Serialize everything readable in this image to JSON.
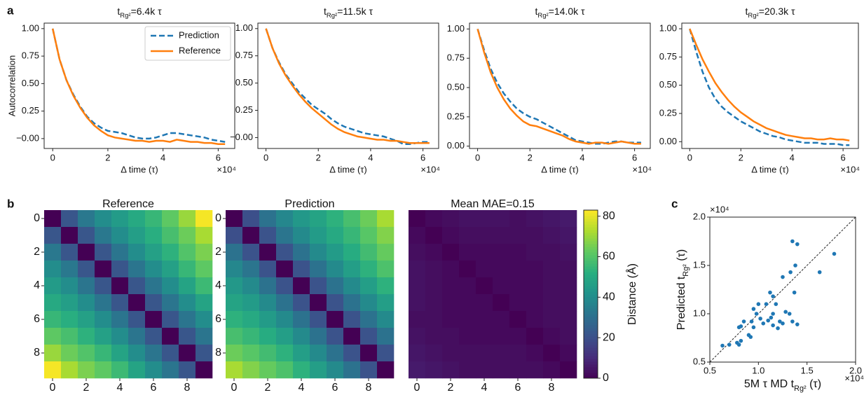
{
  "panel_labels": [
    "a",
    "b",
    "c"
  ],
  "chart_data": [
    {
      "type": "line",
      "title": [
        {
          "text": "t"
        },
        {
          "text": "Rg²",
          "sub": true
        },
        {
          "text": "=6.4k τ"
        }
      ],
      "xlabel": "Δ time (τ)",
      "ylabel": "Autocorrelation",
      "x_offset": "×10⁴",
      "legend": "upper right",
      "x": [
        0,
        0.25,
        0.5,
        0.75,
        1,
        1.25,
        1.5,
        1.75,
        2,
        2.25,
        2.5,
        2.75,
        3,
        3.25,
        3.5,
        3.75,
        4,
        4.25,
        4.5,
        4.75,
        5,
        5.25,
        5.5,
        5.75,
        6,
        6.25
      ],
      "series": [
        {
          "name": "Prediction",
          "color": "#1f77b4",
          "dash": true,
          "values": [
            1,
            0.72,
            0.53,
            0.4,
            0.29,
            0.2,
            0.14,
            0.1,
            0.07,
            0.06,
            0.05,
            0.03,
            0.01,
            0,
            0,
            0.01,
            0.03,
            0.05,
            0.05,
            0.04,
            0.03,
            0.02,
            0.01,
            -0.01,
            -0.02,
            -0.03
          ]
        },
        {
          "name": "Reference",
          "color": "#ff7f0e",
          "values": [
            1,
            0.72,
            0.53,
            0.39,
            0.28,
            0.19,
            0.12,
            0.07,
            0.03,
            0.01,
            0,
            -0.01,
            -0.02,
            -0.02,
            -0.03,
            -0.02,
            -0.02,
            -0.03,
            -0.01,
            -0.02,
            -0.03,
            -0.03,
            -0.04,
            -0.04,
            -0.05,
            -0.05
          ]
        }
      ],
      "xlim": [
        -0.31,
        6.6
      ],
      "ylim": [
        -0.09,
        1.05
      ],
      "xticks": [
        0,
        2,
        4,
        6
      ],
      "yticks": [
        {
          "value": 0,
          "label": "−0.00"
        },
        {
          "value": 0.25,
          "label": "0.25"
        },
        {
          "value": 0.5,
          "label": "0.50"
        },
        {
          "value": 0.75,
          "label": "0.75"
        },
        {
          "value": 1,
          "label": "1.00"
        }
      ]
    },
    {
      "type": "line",
      "title": [
        {
          "text": "t"
        },
        {
          "text": "Rg²",
          "sub": true
        },
        {
          "text": "=11.5k τ"
        }
      ],
      "xlabel": "Δ time (τ)",
      "x_offset": "×10⁴",
      "x": [
        0,
        0.25,
        0.5,
        0.75,
        1,
        1.25,
        1.5,
        1.75,
        2,
        2.25,
        2.5,
        2.75,
        3,
        3.25,
        3.5,
        3.75,
        4,
        4.25,
        4.5,
        4.75,
        5,
        5.25,
        5.5,
        5.75,
        6,
        6.25
      ],
      "series": [
        {
          "color": "#1f77b4",
          "dash": true,
          "values": [
            1,
            0.82,
            0.69,
            0.58,
            0.5,
            0.42,
            0.36,
            0.3,
            0.26,
            0.22,
            0.17,
            0.13,
            0.1,
            0.08,
            0.06,
            0.04,
            0.03,
            0.02,
            0.01,
            -0.01,
            -0.03,
            -0.06,
            -0.06,
            -0.05,
            -0.04,
            -0.04
          ]
        },
        {
          "color": "#ff7f0e",
          "values": [
            1,
            0.82,
            0.68,
            0.57,
            0.48,
            0.4,
            0.33,
            0.27,
            0.22,
            0.17,
            0.12,
            0.08,
            0.05,
            0.03,
            0.01,
            0,
            -0.01,
            -0.02,
            -0.02,
            -0.03,
            -0.03,
            -0.04,
            -0.05,
            -0.05,
            -0.05,
            -0.05
          ]
        }
      ],
      "xlim": [
        -0.31,
        6.6
      ],
      "ylim": [
        -0.1,
        1.05
      ],
      "xticks": [
        0,
        2,
        4,
        6
      ],
      "yticks": [
        {
          "value": 0,
          "label": "−0.00"
        },
        {
          "value": 0.25,
          "label": "0.25"
        },
        {
          "value": 0.5,
          "label": "0.50"
        },
        {
          "value": 0.75,
          "label": "0.75"
        },
        {
          "value": 1,
          "label": "1.00"
        }
      ]
    },
    {
      "type": "line",
      "title": [
        {
          "text": "t"
        },
        {
          "text": "Rg²",
          "sub": true
        },
        {
          "text": "=14.0k τ"
        }
      ],
      "xlabel": "Δ time (τ)",
      "x_offset": "×10⁴",
      "x": [
        0,
        0.25,
        0.5,
        0.75,
        1,
        1.25,
        1.5,
        1.75,
        2,
        2.25,
        2.5,
        2.75,
        3,
        3.25,
        3.5,
        3.75,
        4,
        4.25,
        4.5,
        4.75,
        5,
        5.25,
        5.5,
        5.75,
        6,
        6.25
      ],
      "series": [
        {
          "color": "#1f77b4",
          "dash": true,
          "values": [
            1,
            0.82,
            0.66,
            0.54,
            0.45,
            0.38,
            0.32,
            0.28,
            0.25,
            0.23,
            0.2,
            0.17,
            0.14,
            0.11,
            0.08,
            0.05,
            0.04,
            0.03,
            0.02,
            0.02,
            0.03,
            0.04,
            0.04,
            0.03,
            0.03,
            0.03
          ]
        },
        {
          "color": "#ff7f0e",
          "values": [
            1,
            0.8,
            0.63,
            0.5,
            0.4,
            0.32,
            0.26,
            0.21,
            0.18,
            0.17,
            0.15,
            0.13,
            0.11,
            0.09,
            0.06,
            0.04,
            0.03,
            0.02,
            0.03,
            0.03,
            0.02,
            0.03,
            0.04,
            0.03,
            0.02,
            0.02
          ]
        }
      ],
      "xlim": [
        -0.31,
        6.6
      ],
      "ylim": [
        -0.02,
        1.05
      ],
      "xticks": [
        0,
        2,
        4,
        6
      ],
      "yticks": [
        {
          "value": 0,
          "label": "0.00"
        },
        {
          "value": 0.25,
          "label": "0.25"
        },
        {
          "value": 0.5,
          "label": "0.50"
        },
        {
          "value": 0.75,
          "label": "0.75"
        },
        {
          "value": 1,
          "label": "1.00"
        }
      ]
    },
    {
      "type": "line",
      "title": [
        {
          "text": "t"
        },
        {
          "text": "Rg²",
          "sub": true
        },
        {
          "text": "=20.3k τ"
        }
      ],
      "xlabel": "Δ time (τ)",
      "x_offset": "×10⁴",
      "x": [
        0,
        0.25,
        0.5,
        0.75,
        1,
        1.25,
        1.5,
        1.75,
        2,
        2.25,
        2.5,
        2.75,
        3,
        3.25,
        3.5,
        3.75,
        4,
        4.25,
        4.5,
        4.75,
        5,
        5.25,
        5.5,
        5.75,
        6,
        6.25
      ],
      "series": [
        {
          "color": "#1f77b4",
          "dash": true,
          "values": [
            1,
            0.8,
            0.62,
            0.48,
            0.38,
            0.31,
            0.26,
            0.22,
            0.18,
            0.15,
            0.12,
            0.09,
            0.07,
            0.05,
            0.04,
            0.02,
            0.01,
            0,
            -0.01,
            -0.01,
            -0.01,
            -0.02,
            -0.02,
            -0.02,
            -0.03,
            -0.03
          ]
        },
        {
          "color": "#ff7f0e",
          "values": [
            1,
            0.86,
            0.73,
            0.62,
            0.52,
            0.44,
            0.37,
            0.31,
            0.26,
            0.22,
            0.18,
            0.15,
            0.12,
            0.1,
            0.08,
            0.06,
            0.05,
            0.04,
            0.03,
            0.03,
            0.02,
            0.02,
            0.03,
            0.02,
            0.02,
            0.01
          ]
        }
      ],
      "xlim": [
        -0.31,
        6.6
      ],
      "ylim": [
        -0.06,
        1.05
      ],
      "xticks": [
        0,
        2,
        4,
        6
      ],
      "yticks": [
        {
          "value": 0,
          "label": "0.00"
        },
        {
          "value": 0.25,
          "label": "0.25"
        },
        {
          "value": 0.5,
          "label": "0.50"
        },
        {
          "value": 0.75,
          "label": "0.75"
        },
        {
          "value": 1,
          "label": "1.00"
        }
      ]
    },
    {
      "type": "heatmap",
      "title": "Reference",
      "colormap": "viridis",
      "clim": [
        0,
        83
      ],
      "xticks": [
        0,
        2,
        4,
        6,
        8
      ],
      "yticks": [
        0,
        2,
        4,
        6,
        8
      ],
      "matrix": [
        [
          0,
          22,
          33,
          40,
          45,
          50,
          55,
          62,
          70,
          82
        ],
        [
          22,
          0,
          22,
          33,
          40,
          46,
          52,
          58,
          64,
          72
        ],
        [
          33,
          22,
          0,
          22,
          32,
          40,
          47,
          53,
          60,
          66
        ],
        [
          40,
          33,
          22,
          0,
          22,
          32,
          40,
          47,
          55,
          62
        ],
        [
          45,
          40,
          32,
          22,
          0,
          22,
          32,
          40,
          48,
          56
        ],
        [
          50,
          46,
          40,
          32,
          22,
          0,
          22,
          32,
          40,
          48
        ],
        [
          55,
          52,
          47,
          40,
          32,
          22,
          0,
          22,
          32,
          40
        ],
        [
          62,
          58,
          53,
          47,
          40,
          32,
          22,
          0,
          22,
          32
        ],
        [
          70,
          64,
          60,
          55,
          48,
          40,
          32,
          22,
          0,
          22
        ],
        [
          82,
          72,
          66,
          62,
          56,
          48,
          40,
          32,
          22,
          0
        ]
      ]
    },
    {
      "type": "heatmap",
      "title": "Prediction",
      "colormap": "viridis",
      "clim": [
        0,
        83
      ],
      "xticks": [
        0,
        2,
        4,
        6,
        8
      ],
      "yticks": [
        0,
        2,
        4,
        6,
        8
      ],
      "matrix": [
        [
          0,
          20,
          31,
          38,
          44,
          48,
          53,
          58,
          64,
          72
        ],
        [
          20,
          0,
          21,
          32,
          39,
          45,
          50,
          55,
          61,
          67
        ],
        [
          31,
          21,
          0,
          21,
          31,
          39,
          45,
          51,
          57,
          63
        ],
        [
          38,
          32,
          21,
          0,
          21,
          31,
          39,
          46,
          53,
          59
        ],
        [
          44,
          39,
          31,
          21,
          0,
          21,
          31,
          39,
          46,
          53
        ],
        [
          48,
          45,
          39,
          31,
          21,
          0,
          21,
          31,
          39,
          46
        ],
        [
          53,
          50,
          45,
          39,
          31,
          21,
          0,
          21,
          31,
          39
        ],
        [
          58,
          55,
          51,
          46,
          39,
          31,
          21,
          0,
          21,
          31
        ],
        [
          64,
          61,
          57,
          53,
          46,
          39,
          31,
          21,
          0,
          21
        ],
        [
          72,
          67,
          63,
          59,
          53,
          46,
          39,
          31,
          21,
          0
        ]
      ]
    },
    {
      "type": "heatmap",
      "title": "Mean MAE=0.15",
      "colormap": "viridis",
      "clim": [
        0,
        83
      ],
      "xticks": [
        0,
        2,
        4,
        6,
        8
      ],
      "yticks": [],
      "colorbar": {
        "label": "Distance (Å)",
        "ticks": [
          0,
          20,
          40,
          60,
          80
        ]
      },
      "matrix": [
        [
          0,
          2,
          3,
          4,
          4,
          4,
          3,
          4,
          5,
          6
        ],
        [
          2,
          0,
          2,
          3,
          3,
          3,
          3,
          3,
          4,
          5
        ],
        [
          3,
          2,
          0,
          2,
          2,
          2,
          2,
          3,
          3,
          4
        ],
        [
          4,
          3,
          2,
          0,
          2,
          2,
          2,
          2,
          3,
          3
        ],
        [
          4,
          3,
          2,
          2,
          0,
          2,
          2,
          2,
          3,
          3
        ],
        [
          4,
          3,
          2,
          2,
          2,
          0,
          2,
          2,
          3,
          3
        ],
        [
          3,
          3,
          2,
          2,
          2,
          2,
          0,
          2,
          3,
          3
        ],
        [
          4,
          3,
          3,
          2,
          2,
          2,
          2,
          0,
          2,
          3
        ],
        [
          5,
          4,
          3,
          3,
          3,
          3,
          3,
          2,
          0,
          2
        ],
        [
          6,
          5,
          4,
          3,
          3,
          3,
          3,
          3,
          2,
          0
        ]
      ]
    },
    {
      "type": "scatter",
      "color": "#1f77b4",
      "diagonal": true,
      "xlabel": [
        {
          "text": "5M τ MD t"
        },
        {
          "text": "Rg²",
          "sub": true
        },
        {
          "text": " (τ)"
        }
      ],
      "ylabel": [
        {
          "text": "Predicted t"
        },
        {
          "text": "Rg²",
          "sub": true
        },
        {
          "text": " (τ)"
        }
      ],
      "x_offset": "×10⁴",
      "y_offset": "×10⁴",
      "x": [
        0.63,
        0.7,
        0.78,
        0.8,
        0.82,
        0.8,
        0.82,
        0.85,
        0.9,
        0.92,
        0.93,
        0.95,
        0.95,
        0.98,
        1.0,
        1.02,
        1.05,
        1.08,
        1.1,
        1.12,
        1.13,
        1.15,
        1.15,
        1.18,
        1.2,
        1.22,
        1.25,
        1.25,
        1.28,
        1.32,
        1.33,
        1.35,
        1.35,
        1.37,
        1.38,
        1.4,
        1.4,
        1.63,
        1.78,
        1.15
      ],
      "values": [
        0.67,
        0.68,
        0.7,
        0.68,
        0.72,
        0.86,
        0.87,
        0.92,
        0.78,
        0.76,
        0.92,
        0.86,
        1.05,
        1.0,
        1.1,
        0.95,
        0.9,
        1.1,
        0.93,
        1.22,
        0.96,
        1.0,
        0.88,
        1.1,
        0.85,
        0.92,
        1.38,
        0.9,
        1.02,
        1.0,
        1.43,
        0.92,
        1.75,
        1.22,
        1.5,
        1.72,
        0.89,
        1.43,
        1.62,
        1.18
      ],
      "xlim": [
        0.5,
        2.0
      ],
      "ylim": [
        0.5,
        2.0
      ],
      "xticks": [
        0.5,
        {
          "value": 1,
          "label": "1.0"
        },
        1.5,
        {
          "value": 2,
          "label": "2.0"
        }
      ],
      "yticks": [
        0.5,
        {
          "value": 1,
          "label": "1.0"
        },
        1.5,
        {
          "value": 2,
          "label": "2.0"
        }
      ]
    }
  ]
}
